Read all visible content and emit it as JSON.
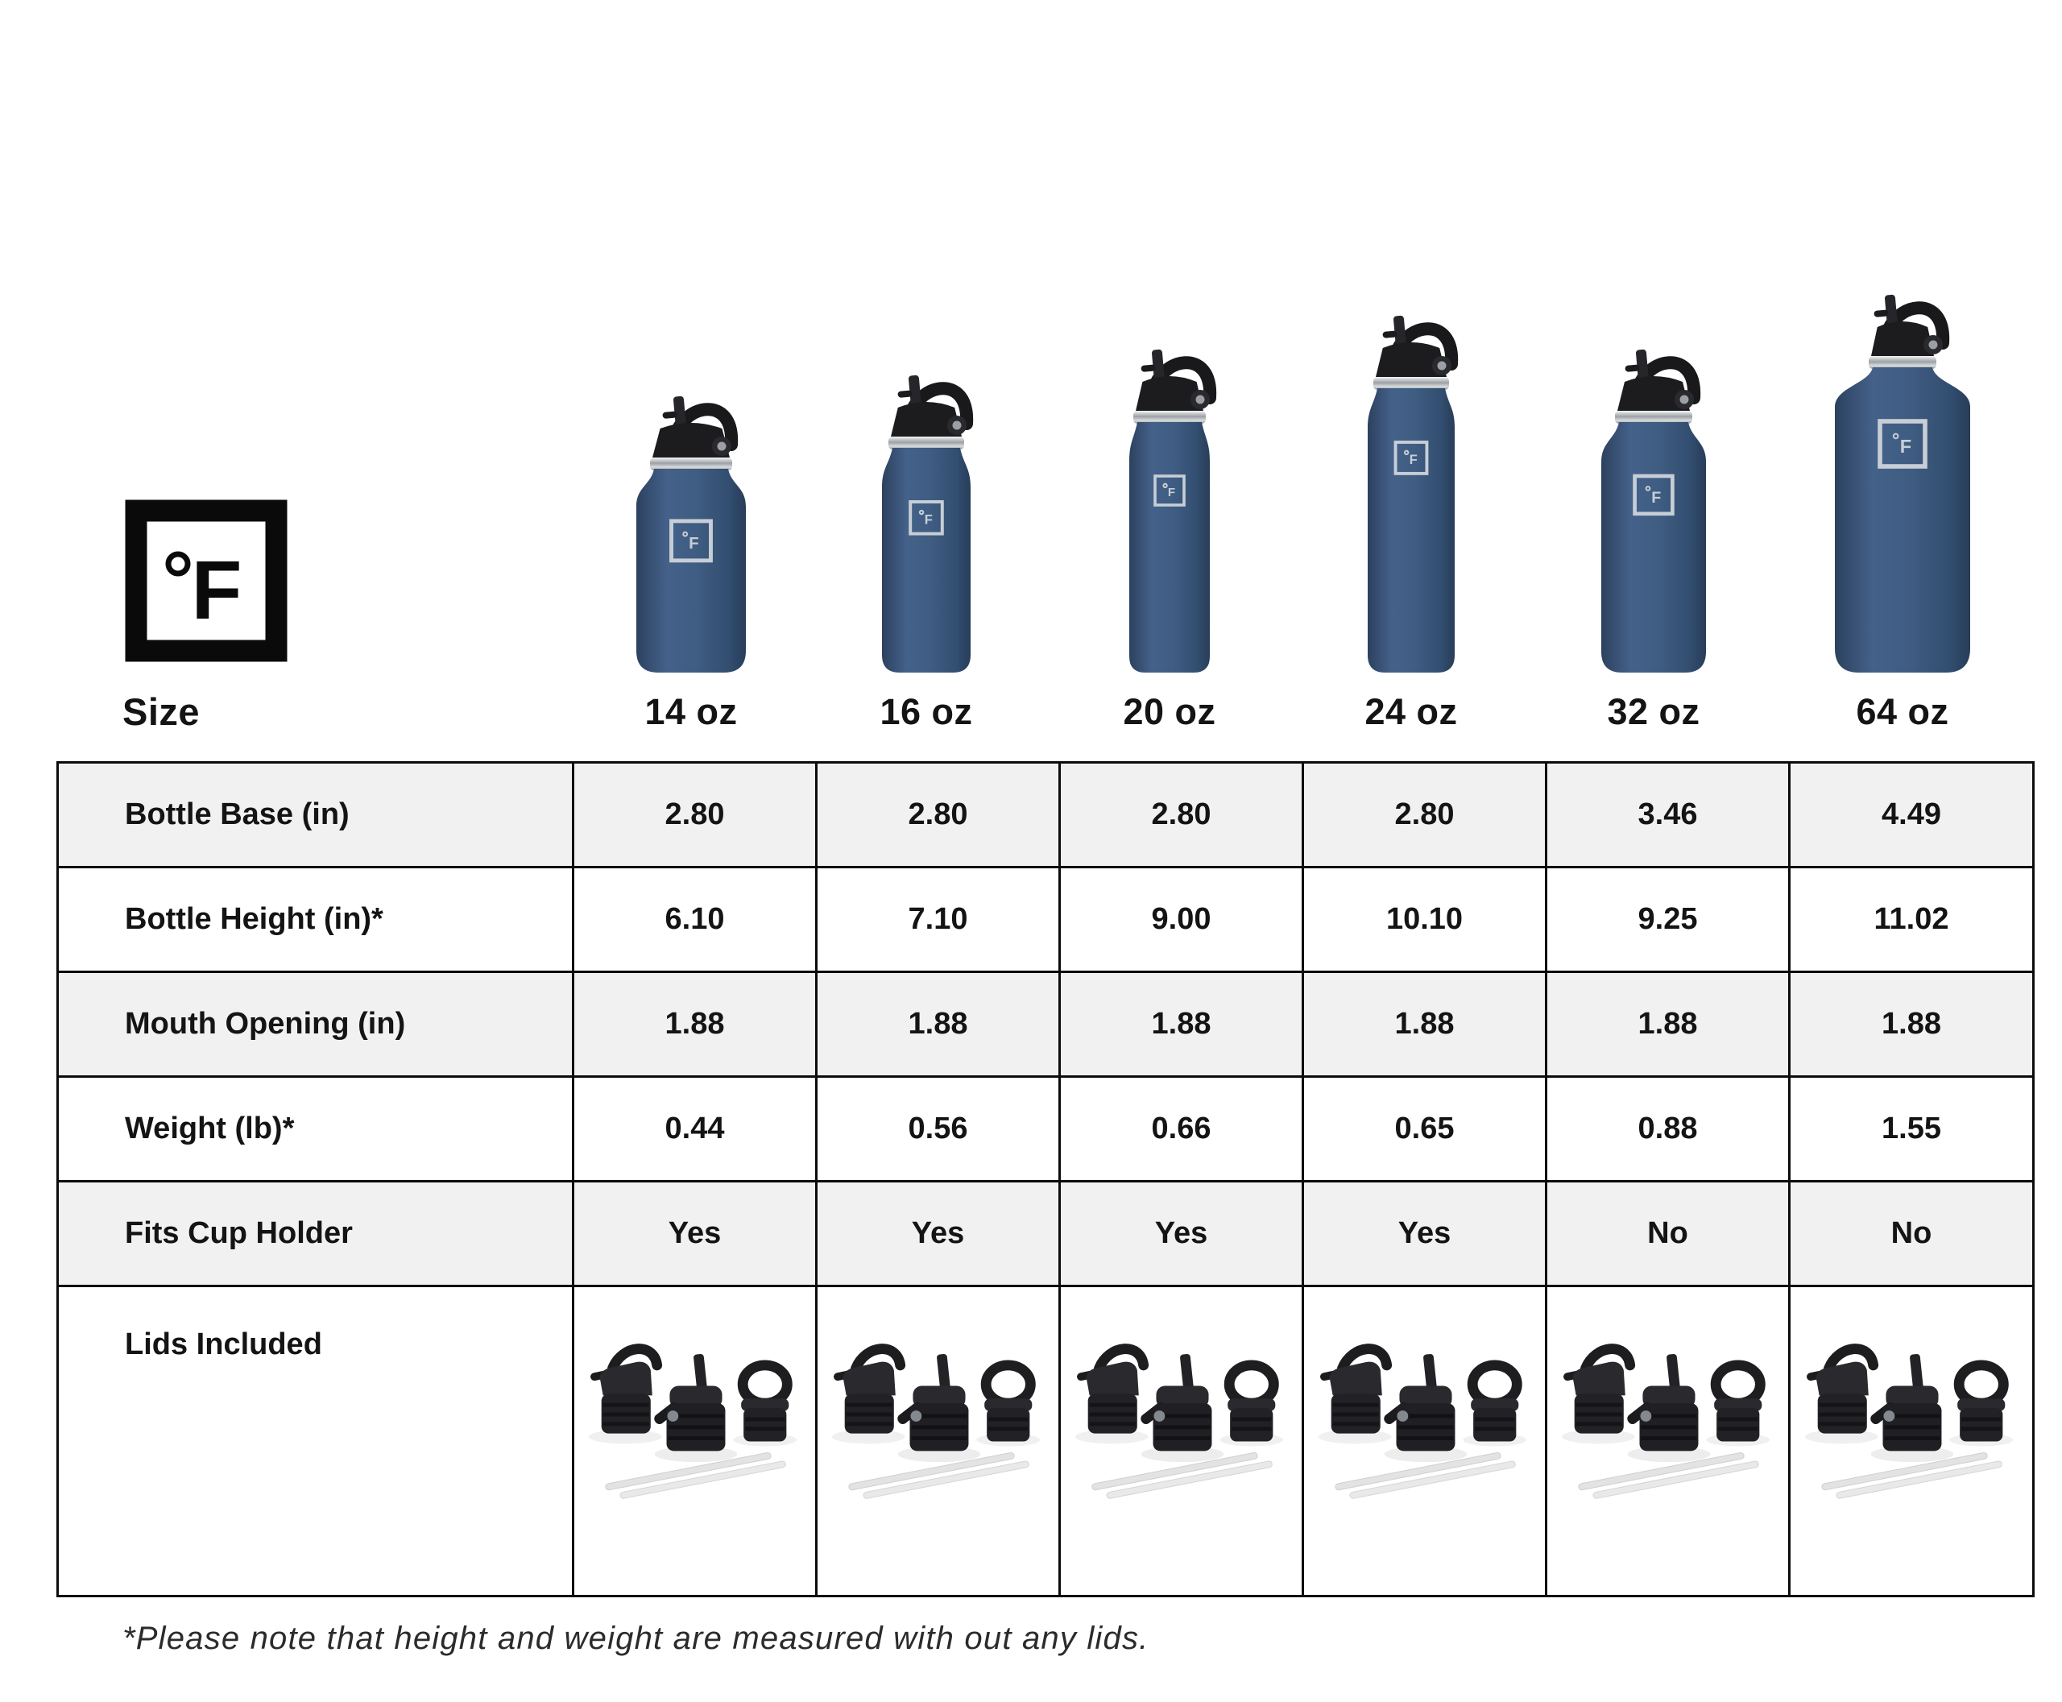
{
  "brand": {
    "logo_letter": "F",
    "logo_symbol": "°F",
    "icon": "degrees-fahrenheit-square-logo"
  },
  "size_row": {
    "label": "Size",
    "sizes": [
      "14 oz",
      "16 oz",
      "20 oz",
      "24 oz",
      "32 oz",
      "64 oz"
    ]
  },
  "table": {
    "rows": [
      {
        "label": "Bottle Base (in)",
        "shaded": true,
        "values": [
          "2.80",
          "2.80",
          "2.80",
          "2.80",
          "3.46",
          "4.49"
        ]
      },
      {
        "label": "Bottle Height (in)*",
        "shaded": false,
        "values": [
          "6.10",
          "7.10",
          "9.00",
          "10.10",
          "9.25",
          "11.02"
        ]
      },
      {
        "label": "Mouth Opening (in)",
        "shaded": true,
        "values": [
          "1.88",
          "1.88",
          "1.88",
          "1.88",
          "1.88",
          "1.88"
        ]
      },
      {
        "label": "Weight (lb)*",
        "shaded": false,
        "values": [
          "0.44",
          "0.56",
          "0.66",
          "0.65",
          "0.88",
          "1.55"
        ]
      },
      {
        "label": "Fits Cup Holder",
        "shaded": true,
        "values": [
          "Yes",
          "Yes",
          "Yes",
          "Yes",
          "No",
          "No"
        ]
      },
      {
        "label": "Lids Included",
        "shaded": false,
        "type": "images",
        "image": "three-lids-and-two-straws"
      }
    ]
  },
  "footnote": {
    "text": "*Please note that height and weight are measured with out any lids."
  },
  "colors": {
    "bottle_navy": "#3e5b80",
    "bottle_navy_dark": "#2c415f",
    "bottle_navy_light": "#44618a",
    "lid_black": "#1d1d20",
    "steel_silver": "#c9ced2",
    "logo_engraving_silver": "#c7ced6",
    "row_shaded_bg": "#f1f1f1",
    "table_border": "#0c0c0c",
    "text": "#141414"
  },
  "icons": {
    "bottle": "water-bottle-with-straw-lid",
    "lids": "three-lids-and-two-straws"
  }
}
